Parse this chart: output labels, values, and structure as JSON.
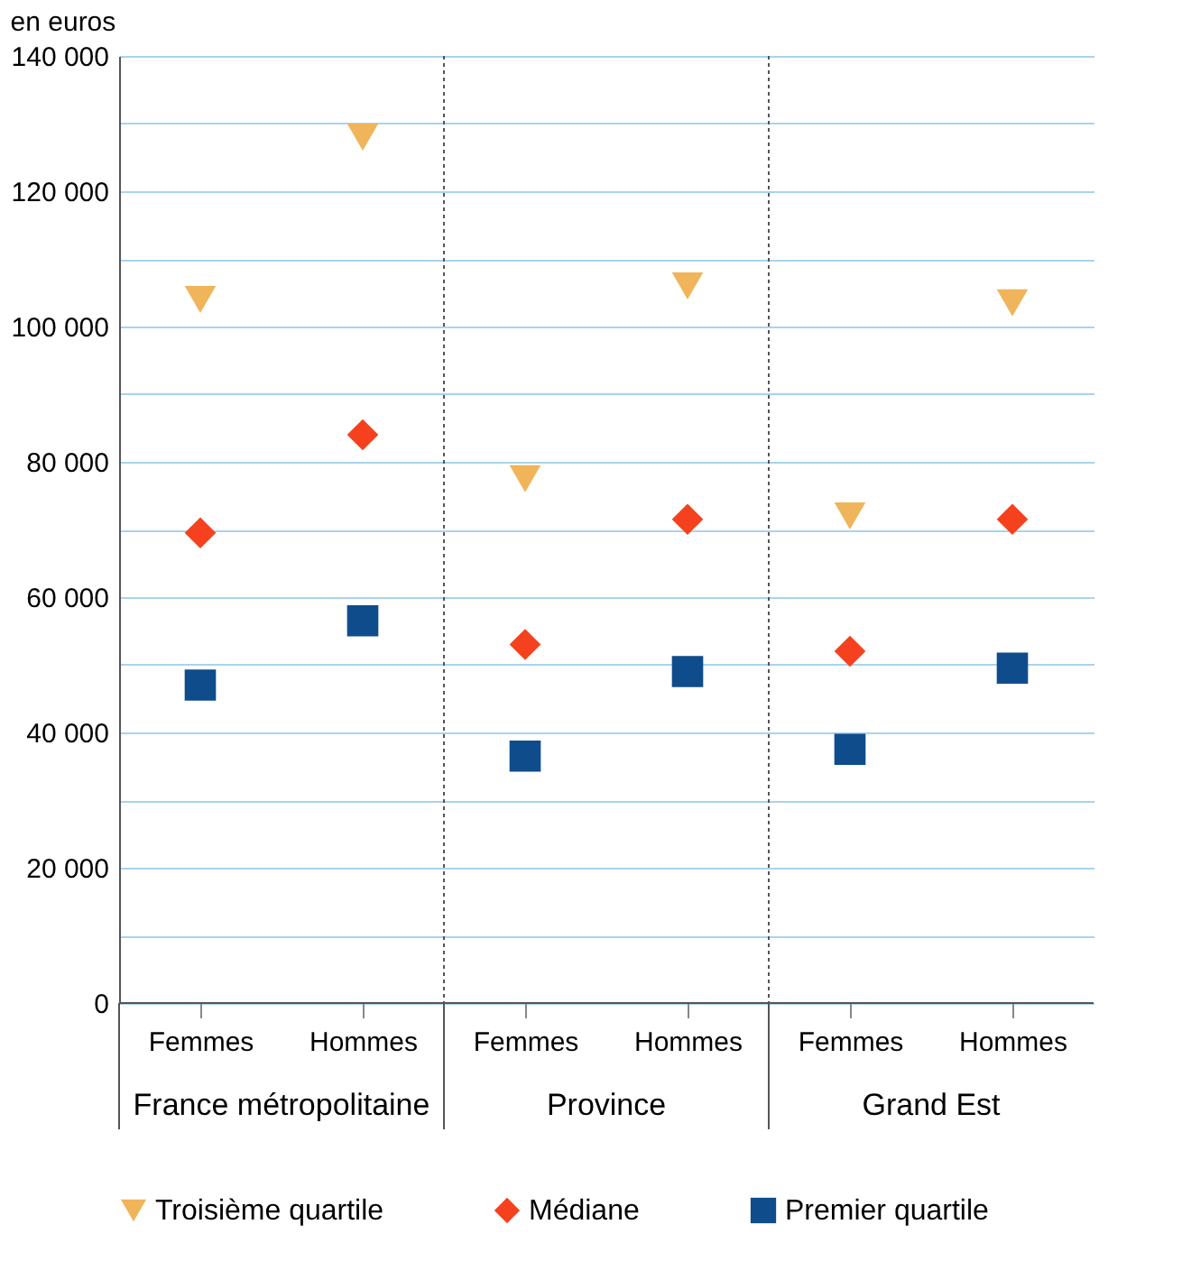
{
  "chart_data": {
    "type": "scatter",
    "ylabel": "en euros",
    "categories": [
      "Femmes",
      "Hommes",
      "Femmes",
      "Hommes",
      "Femmes",
      "Hommes"
    ],
    "annotations": [
      "France métropolitaine",
      "Province",
      "Grand Est"
    ],
    "series": [
      {
        "name": "Troisième quartile",
        "color": "#f0b45a",
        "marker": "triangle",
        "values": [
          104000,
          128000,
          77500,
          106000,
          72000,
          103500
        ]
      },
      {
        "name": "Médiane",
        "color": "#f5411e",
        "marker": "diamond",
        "values": [
          69500,
          84000,
          53000,
          71500,
          52000,
          71500
        ]
      },
      {
        "name": "Premier quartile",
        "color": "#0f4c8c",
        "marker": "square",
        "values": [
          47000,
          56500,
          36500,
          49000,
          37500,
          49500
        ]
      }
    ],
    "ylim": [
      0,
      140000
    ],
    "yticks": [
      {
        "value": 0,
        "label": "0"
      },
      {
        "value": 10000,
        "label": null
      },
      {
        "value": 20000,
        "label": "20 000"
      },
      {
        "value": 30000,
        "label": null
      },
      {
        "value": 40000,
        "label": "40 000"
      },
      {
        "value": 50000,
        "label": null
      },
      {
        "value": 60000,
        "label": "60 000"
      },
      {
        "value": 70000,
        "label": null
      },
      {
        "value": 80000,
        "label": "80 000"
      },
      {
        "value": 90000,
        "label": null
      },
      {
        "value": 100000,
        "label": "100 000"
      },
      {
        "value": 110000,
        "label": null
      },
      {
        "value": 120000,
        "label": "120 000"
      },
      {
        "value": 130000,
        "label": null
      },
      {
        "value": 140000,
        "label": "140 000"
      }
    ],
    "grid": "y",
    "legend": "bottom"
  }
}
